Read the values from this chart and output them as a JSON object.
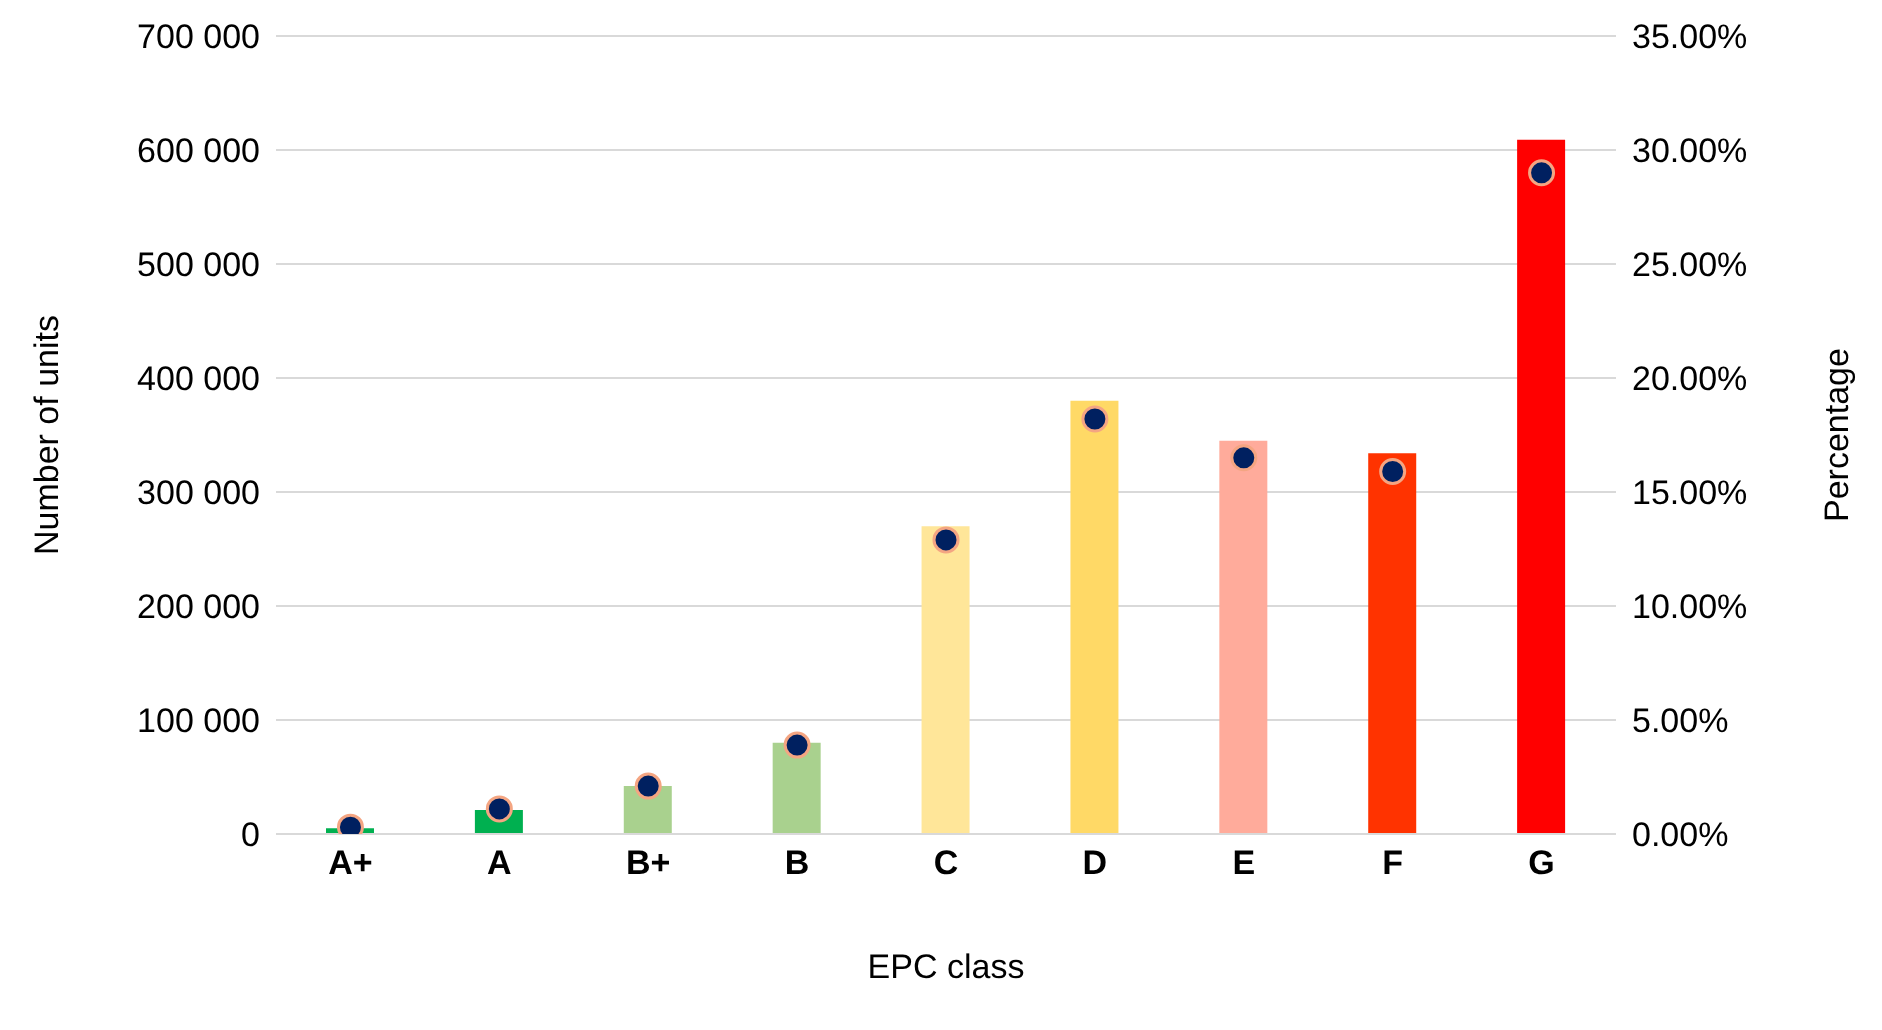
{
  "chart_data": {
    "type": "bar",
    "xlabel": "EPC class",
    "ylabel": "Number of units",
    "y2label": "Percentage",
    "categories": [
      "A+",
      "A",
      "B+",
      "B",
      "C",
      "D",
      "E",
      "F",
      "G"
    ],
    "series": [
      {
        "colors": [
          "#00b050",
          "#00b050",
          "#a9d18e",
          "#a9d18e",
          "#ffe699",
          "#ffd966",
          "#ffab9b",
          "#ff3300",
          "#ff0000"
        ],
        "values": [
          5000,
          21000,
          42000,
          80000,
          270000,
          380000,
          345000,
          334000,
          609000
        ]
      },
      {
        "type": "scatter",
        "axis": "y2",
        "color": "#002060",
        "values": [
          0.3,
          1.1,
          2.1,
          3.9,
          12.9,
          18.2,
          16.5,
          15.9,
          29
        ]
      }
    ],
    "ylim": [
      0,
      700000
    ],
    "yticks": [
      {
        "value": 0,
        "label": "0"
      },
      {
        "value": 100000,
        "label": "100 000"
      },
      {
        "value": 200000,
        "label": "200 000"
      },
      {
        "value": 300000,
        "label": "300 000"
      },
      {
        "value": 400000,
        "label": "400 000"
      },
      {
        "value": 500000,
        "label": "500 000"
      },
      {
        "value": 600000,
        "label": "600 000"
      },
      {
        "value": 700000,
        "label": "700 000"
      }
    ],
    "y2lim": [
      0,
      35
    ],
    "y2ticks": [
      {
        "value": 0,
        "label": "0.00%"
      },
      {
        "value": 5,
        "label": "5.00%"
      },
      {
        "value": 10,
        "label": "10.00%"
      },
      {
        "value": 15,
        "label": "15.00%"
      },
      {
        "value": 20,
        "label": "20.00%"
      },
      {
        "value": 25,
        "label": "25.00%"
      },
      {
        "value": 30,
        "label": "30.00%"
      },
      {
        "value": 35,
        "label": "35.00%"
      }
    ],
    "grid": "y",
    "marker": "circle"
  }
}
